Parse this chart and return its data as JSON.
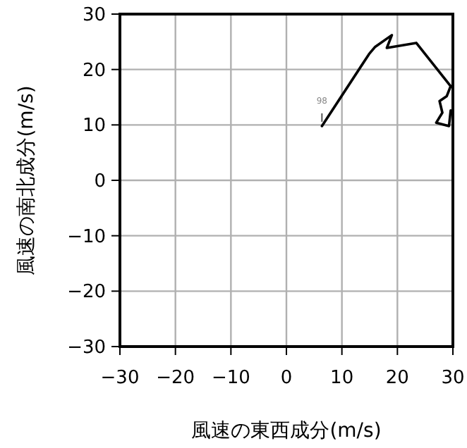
{
  "chart_data": {
    "type": "line",
    "xlabel": "風速の東西成分(m/s)",
    "ylabel": "風速の南北成分(m/s)",
    "series": [
      {
        "color": "#000000",
        "x": [
          6.4,
          14.9,
          16.0,
          19.0,
          18.1,
          23.4,
          29.6,
          28.9,
          27.6,
          28.1,
          27.0,
          29.3,
          29.6
        ],
        "values": [
          9.8,
          22.8,
          24.1,
          26.2,
          23.9,
          24.8,
          17.0,
          15.2,
          14.3,
          12.2,
          10.4,
          9.8,
          12.6
        ]
      }
    ],
    "xlim": [
      -30,
      30
    ],
    "ylim": [
      -30,
      30
    ],
    "xticks": [
      -30,
      -20,
      -10,
      0,
      10,
      20,
      30
    ],
    "yticks": [
      -30,
      -20,
      -10,
      0,
      10,
      20,
      30
    ],
    "grid": true,
    "marker": "none",
    "line_style": "solid",
    "annotations": [
      {
        "text": "98",
        "x": 6.4,
        "y": 9.8
      }
    ]
  }
}
